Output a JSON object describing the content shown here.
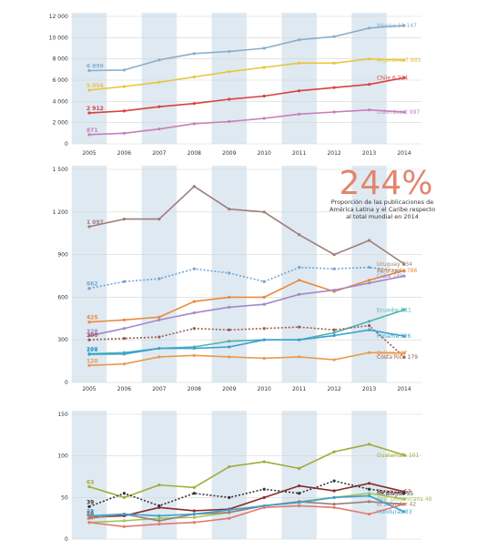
{
  "chart_data": [
    {
      "type": "line",
      "x": [
        2005,
        2006,
        2007,
        2008,
        2009,
        2010,
        2011,
        2012,
        2013,
        2014
      ],
      "ylim": [
        0,
        12000
      ],
      "yticks": [
        0,
        2000,
        4000,
        6000,
        8000,
        10000,
        12000
      ],
      "ytick_labels": [
        "0",
        "2 000",
        "4 000",
        "6 000",
        "8 000",
        "10 000",
        "12 000"
      ],
      "xtick_labels": [
        "2005",
        "2006",
        "2007",
        "2008",
        "2009",
        "2010",
        "2011",
        "2012",
        "2013",
        "2014"
      ],
      "series": [
        {
          "name": "México",
          "end_label": "México 11 147",
          "start_label": "6 899",
          "color": "#8aaecb",
          "dash": "",
          "values": [
            6899,
            6950,
            7900,
            8500,
            8700,
            9000,
            9800,
            10100,
            10900,
            11147
          ]
        },
        {
          "name": "Argentina",
          "end_label": "Argentina 7 885",
          "start_label": "5 056",
          "color": "#e8c53c",
          "dash": "",
          "values": [
            5056,
            5400,
            5800,
            6300,
            6800,
            7200,
            7600,
            7600,
            8000,
            7885
          ]
        },
        {
          "name": "Chile",
          "end_label": "Chile 6 224",
          "start_label": "2 912",
          "color": "#d9413f",
          "dash": "",
          "values": [
            2912,
            3100,
            3500,
            3800,
            4200,
            4500,
            5000,
            5300,
            5600,
            6224
          ]
        },
        {
          "name": "Colombia",
          "end_label": "Colombia 2 997",
          "start_label": "871",
          "color": "#c77fba",
          "dash": "",
          "values": [
            871,
            1000,
            1400,
            1900,
            2100,
            2400,
            2800,
            3000,
            3200,
            2997
          ]
        }
      ]
    },
    {
      "type": "line",
      "x": [
        2005,
        2006,
        2007,
        2008,
        2009,
        2010,
        2011,
        2012,
        2013,
        2014
      ],
      "ylim": [
        0,
        1500
      ],
      "yticks": [
        0,
        300,
        600,
        900,
        1200,
        1500
      ],
      "ytick_labels": [
        "0",
        "300",
        "600",
        "900",
        "1 200",
        "1 500"
      ],
      "xtick_labels": [
        "2005",
        "2006",
        "2007",
        "2008",
        "2009",
        "2010",
        "2011",
        "2012",
        "2013",
        "2014"
      ],
      "highlight": {
        "value": "244%",
        "text_lines": [
          "Proporción de las publicaciones de",
          "América Latina y el Caribe respecto",
          "al total mundial en 2014"
        ]
      },
      "series": [
        {
          "name": "Uruguay",
          "end_label": "Uruguay 834",
          "start_label": "1 097",
          "color": "#9c7e78",
          "dash": "",
          "values": [
            1097,
            1150,
            1150,
            1380,
            1220,
            1200,
            1040,
            900,
            1000,
            834
          ]
        },
        {
          "name": "Perú",
          "end_label": "Perú 783",
          "start_label": "662",
          "color": "#6fa6d6",
          "dash": "2,2",
          "values": [
            662,
            710,
            730,
            800,
            770,
            710,
            810,
            800,
            810,
            783
          ]
        },
        {
          "name": "Venezuela",
          "end_label": "Venezuela 788",
          "start_label": "425",
          "color": "#e88a3e",
          "dash": "",
          "values": [
            425,
            440,
            460,
            570,
            600,
            600,
            720,
            640,
            720,
            788
          ]
        },
        {
          "name": "Cuba",
          "end_label": "Cuba 749",
          "start_label": "328",
          "color": "#a388c9",
          "dash": "",
          "values": [
            328,
            380,
            440,
            490,
            530,
            550,
            620,
            650,
            700,
            749
          ]
        },
        {
          "name": "Ecuador",
          "end_label": "Ecuador 511",
          "start_label": "202",
          "color": "#4bb3b0",
          "dash": "",
          "values": [
            202,
            210,
            240,
            250,
            290,
            300,
            300,
            350,
            430,
            511
          ]
        },
        {
          "name": "Costa Rica",
          "end_label": "Costa Rica 179",
          "start_label": "300",
          "color": "#a05a4e",
          "dash": "2,2",
          "values": [
            300,
            310,
            320,
            380,
            370,
            380,
            390,
            370,
            400,
            179
          ]
        },
        {
          "name": "Panamá",
          "end_label": "Panamá 326",
          "start_label": "198",
          "color": "#3aa0d0",
          "dash": "",
          "values": [
            198,
            200,
            240,
            240,
            250,
            300,
            300,
            330,
            370,
            326
          ]
        },
        {
          "name": "Bolivia",
          "end_label": "Bolivia 207",
          "start_label": "120",
          "color": "#e89a4f",
          "dash": "",
          "values": [
            120,
            130,
            180,
            190,
            180,
            170,
            180,
            160,
            210,
            207
          ]
        }
      ]
    },
    {
      "type": "line",
      "x": [
        2005,
        2006,
        2007,
        2008,
        2009,
        2010,
        2011,
        2012,
        2013,
        2014
      ],
      "ylim": [
        0,
        150
      ],
      "yticks": [
        0,
        50,
        100,
        150
      ],
      "ytick_labels": [
        "0",
        "50",
        "100",
        "150"
      ],
      "xtick_labels": [],
      "series": [
        {
          "name": "Guatemala",
          "end_label": "Guatemala 101",
          "start_label": "63",
          "color": "#a3aa3a",
          "dash": "",
          "values": [
            63,
            50,
            65,
            62,
            87,
            93,
            85,
            105,
            114,
            101
          ]
        },
        {
          "name": "Paraguay",
          "end_label": "Paraguay 57",
          "start_label": "26",
          "color": "#8b2b2b",
          "dash": "",
          "values": [
            26,
            28,
            38,
            34,
            36,
            50,
            64,
            58,
            67,
            57
          ]
        },
        {
          "name": "Nicaragua",
          "end_label": "Nicaragua 55",
          "start_label": "39",
          "color": "#333333",
          "dash": "2,2",
          "values": [
            39,
            55,
            40,
            55,
            50,
            60,
            55,
            70,
            60,
            55
          ]
        },
        {
          "name": "Rep. Dominicana",
          "end_label": "Rep. Dominicana 48",
          "start_label": "20",
          "color": "#a3c45a",
          "dash": "",
          "values": [
            20,
            22,
            25,
            26,
            32,
            40,
            45,
            50,
            55,
            48
          ]
        },
        {
          "name": "El Salvador",
          "end_label": "El Salvador 42",
          "start_label": "25",
          "color": "#9c7e78",
          "dash": "",
          "values": [
            25,
            30,
            22,
            30,
            32,
            40,
            45,
            42,
            45,
            42
          ]
        },
        {
          "name": "Honduras",
          "end_label": "Honduras 33",
          "start_label": "28",
          "color": "#3aa0d0",
          "dash": "",
          "values": [
            28,
            30,
            28,
            30,
            35,
            40,
            44,
            50,
            52,
            33
          ]
        },
        {
          "name": "",
          "end_label": "",
          "start_label": "20",
          "color": "#e07a6c",
          "dash": "",
          "values": [
            20,
            15,
            18,
            20,
            25,
            38,
            40,
            38,
            30,
            42
          ]
        }
      ]
    }
  ]
}
